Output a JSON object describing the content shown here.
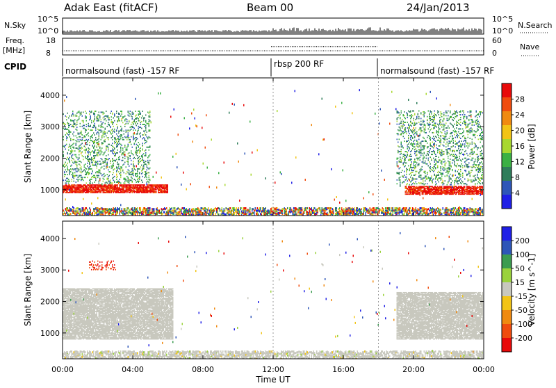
{
  "header": {
    "site": "Adak East (fitACF)",
    "beam": "Beam 00",
    "date": "24/Jan/2013"
  },
  "panels": {
    "nsky": {
      "label": "N.Sky",
      "ytick_hi": "10^5",
      "ytick_lo": "10^0",
      "right_hi": "10^5",
      "right_lo": "10^0",
      "right_label": "N.Search"
    },
    "freq": {
      "label_top": "Freq.",
      "label_unit": "[MHz]",
      "ytick_hi": "18",
      "ytick_lo": "8",
      "right_hi": "60",
      "right_lo": "0",
      "right_label": "Nave"
    },
    "cpid": {
      "label": "CPID",
      "segments": [
        {
          "text": "normalsound (fast) -157 RF",
          "start_h": 0
        },
        {
          "text": "rbsp 200 RF",
          "start_h": 12
        },
        {
          "text": "normalsound (fast) -157 RF",
          "start_h": 18
        }
      ]
    }
  },
  "chart_data": [
    {
      "type": "heatmap",
      "title": "",
      "xlabel": "Time UT",
      "ylabel": "Slant Range [km]",
      "x_ticks": [
        "00:00",
        "04:00",
        "08:00",
        "12:00",
        "16:00",
        "20:00",
        "00:00"
      ],
      "xlim": [
        0,
        24
      ],
      "ylim": [
        180,
        4550
      ],
      "y_ticks": [
        1000,
        2000,
        3000,
        4000
      ],
      "colorbar": {
        "label": "Power [dB]",
        "ticks": [
          "28",
          "24",
          "20",
          "16",
          "12",
          "8",
          "4"
        ],
        "range": [
          0,
          30
        ],
        "colors": [
          "#1f1fe6",
          "#2e56b8",
          "#2f7d5a",
          "#3bb044",
          "#a8d830",
          "#f2c416",
          "#f08a10",
          "#f04c0e",
          "#e80a0a"
        ]
      },
      "features": [
        {
          "name": "strong band morning",
          "start_h": 0,
          "end_h": 6,
          "range_km": [
            900,
            1150
          ],
          "value_db": 28
        },
        {
          "name": "strong band evening",
          "start_h": 19.5,
          "end_h": 24,
          "range_km": [
            850,
            1100
          ],
          "value_db": 28
        },
        {
          "name": "weak echoes morning",
          "start_h": 0,
          "end_h": 5,
          "range_km": [
            1200,
            3500
          ],
          "value_db": 10
        },
        {
          "name": "weak echoes evening",
          "start_h": 19,
          "end_h": 24,
          "range_km": [
            1150,
            3500
          ],
          "value_db": 10
        }
      ]
    },
    {
      "type": "heatmap",
      "title": "",
      "xlabel": "Time UT",
      "ylabel": "Slant Range [km]",
      "x_ticks": [
        "00:00",
        "04:00",
        "08:00",
        "12:00",
        "16:00",
        "20:00",
        "00:00"
      ],
      "xlim": [
        0,
        24
      ],
      "ylim": [
        180,
        4550
      ],
      "y_ticks": [
        1000,
        2000,
        3000,
        4000
      ],
      "colorbar": {
        "label": "Velocity [m s^-1]",
        "ticks": [
          "200",
          "100",
          "50",
          "15",
          "-15",
          "-50",
          "-100",
          "-200"
        ],
        "range": [
          -250,
          250
        ],
        "colors": [
          "#e80a0a",
          "#f04c0e",
          "#f08a10",
          "#f2c416",
          "#c8c8be",
          "#9ad23c",
          "#3c9c50",
          "#2e56b8",
          "#1f1fe6"
        ]
      },
      "features": [
        {
          "name": "ground scatter morning",
          "start_h": 0,
          "end_h": 6.3,
          "range_km": [
            800,
            2400
          ],
          "value_ms": 0
        },
        {
          "name": "ground scatter evening",
          "start_h": 19,
          "end_h": 24,
          "range_km": [
            800,
            2300
          ],
          "value_ms": 0
        },
        {
          "name": "receding patch",
          "start_h": 1.5,
          "end_h": 3,
          "range_km": [
            3000,
            3300
          ],
          "value_ms": -200
        }
      ]
    }
  ]
}
